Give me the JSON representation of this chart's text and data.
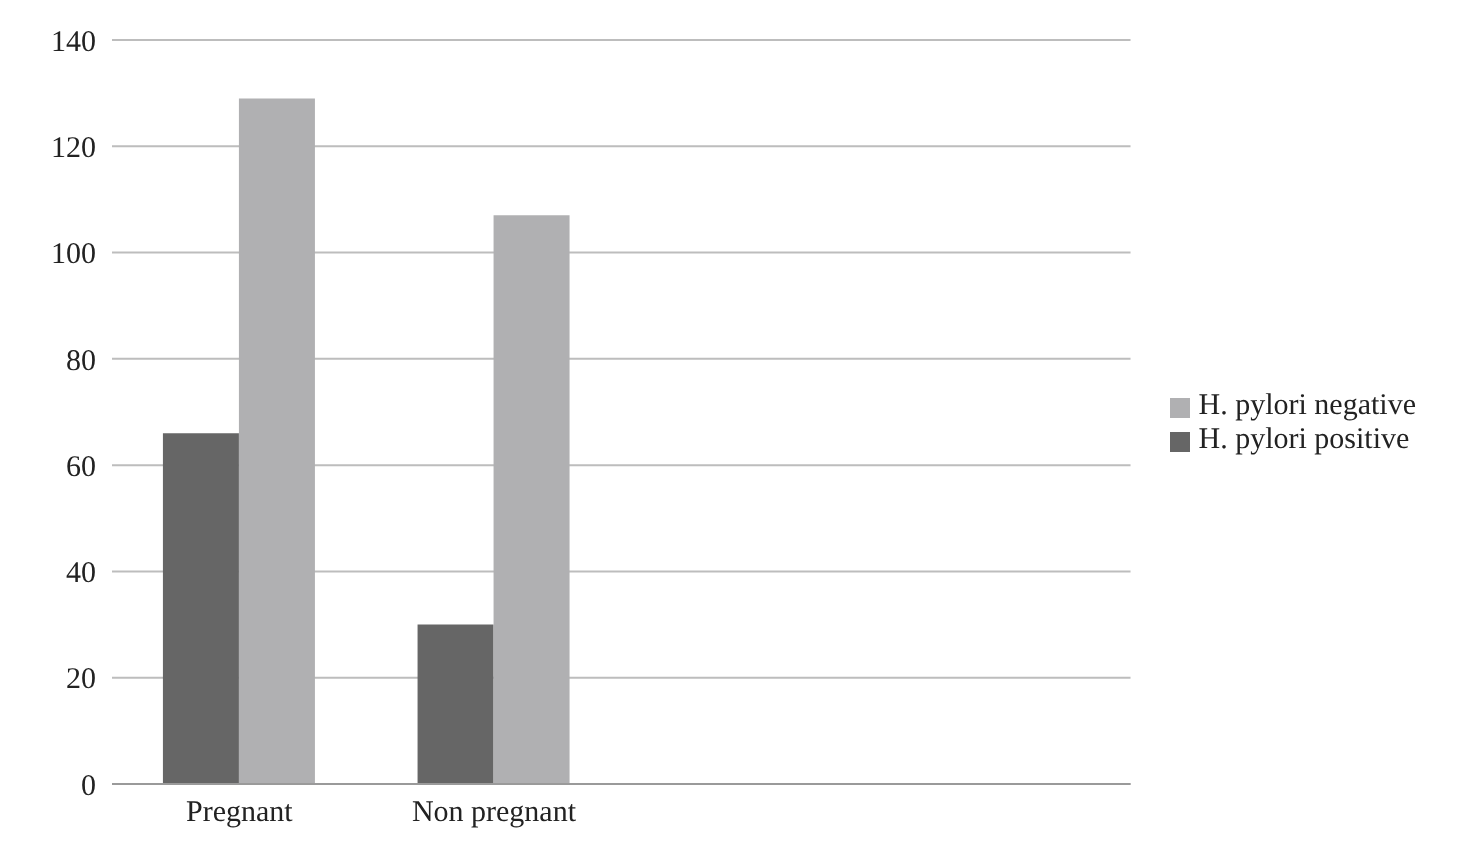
{
  "chart_data": {
    "type": "bar",
    "categories": [
      "Pregnant",
      "Non pregnant",
      null,
      null
    ],
    "series": [
      {
        "name": "H. pylori positive",
        "color": "#666666",
        "values": [
          66,
          30,
          null,
          null
        ]
      },
      {
        "name": "H. pylori negative",
        "color": "#b0b0b2",
        "values": [
          129,
          107,
          null,
          null
        ]
      }
    ],
    "ylim": [
      0,
      140
    ],
    "yticks": [
      0,
      20,
      40,
      60,
      80,
      100,
      120,
      140
    ],
    "grid": "y",
    "legend": "right"
  }
}
